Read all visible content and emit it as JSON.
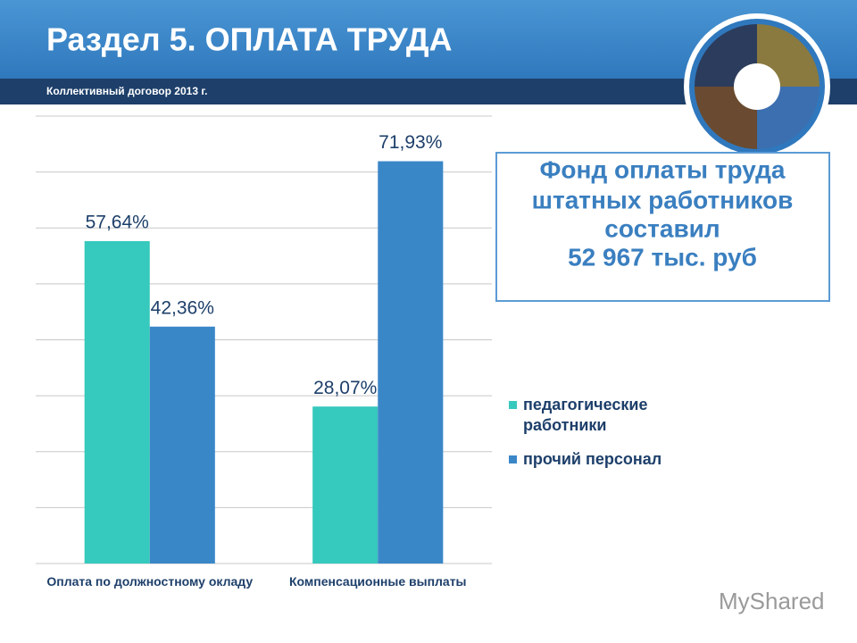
{
  "header": {
    "title": "Раздел 5. ОПЛАТА ТРУДА",
    "subtitle": "Коллективный договор 2013 г."
  },
  "info_box": {
    "lines": [
      "Фонд оплаты труда",
      "штатных работников",
      "составил",
      "52 967 тыс. руб"
    ]
  },
  "watermark": "MyShared",
  "chart_data": {
    "type": "bar",
    "categories": [
      "Оплата по должностному окладу",
      "Компенсационные выплаты"
    ],
    "series": [
      {
        "name": "педагогические работники",
        "color": "#36c9bd",
        "values": [
          57.64,
          28.07
        ],
        "value_labels": [
          "57,64%",
          "28,07%"
        ]
      },
      {
        "name": "прочий персонал",
        "color": "#3a87c8",
        "values": [
          42.36,
          71.93
        ],
        "value_labels": [
          "42,36%",
          "71,93%"
        ]
      }
    ],
    "ylim": [
      0,
      80
    ],
    "yticks": [
      0,
      10,
      20,
      30,
      40,
      50,
      60,
      70,
      80
    ],
    "grid": true,
    "legend": "right"
  }
}
